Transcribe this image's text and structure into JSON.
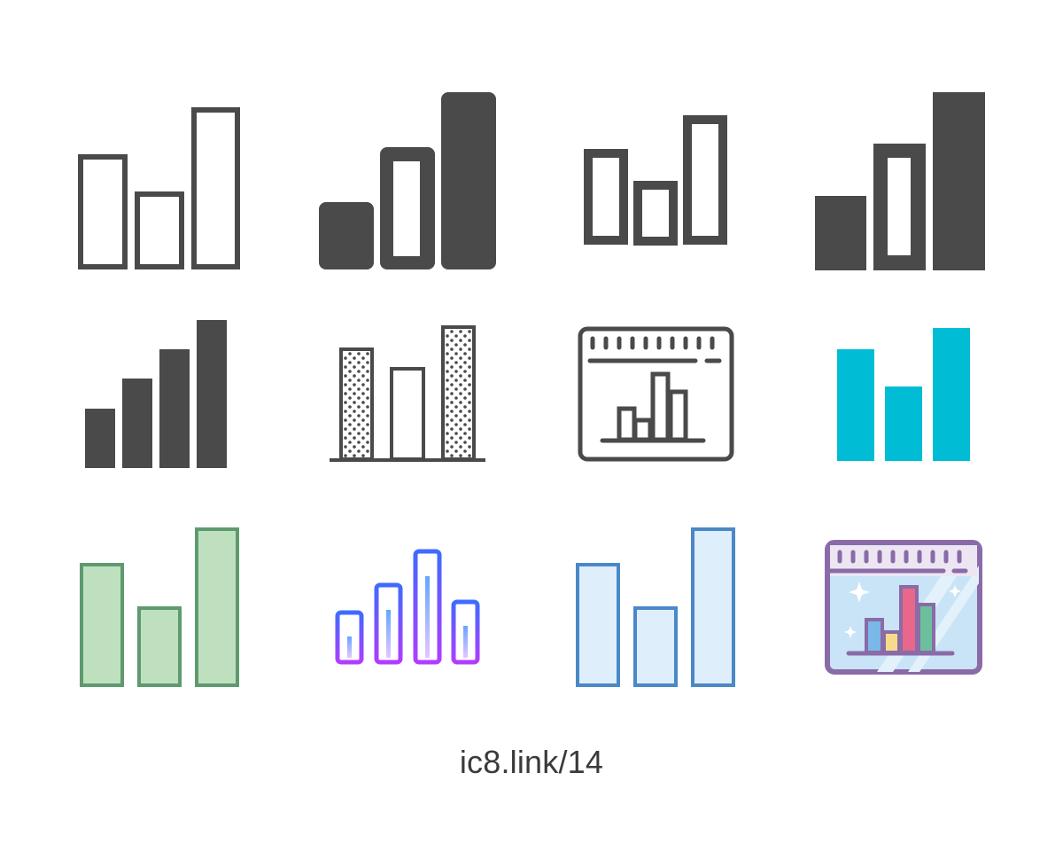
{
  "caption": "ic8.link/14",
  "colors": {
    "dark": "#4a4a4a",
    "cyan": "#00bcd4",
    "green_fill": "#bfe0bf",
    "green_stroke": "#5e9a6e",
    "blue_fill": "#dfeefb",
    "blue_stroke": "#4a88c7",
    "gradient_start": "#b13cff",
    "gradient_end": "#3f6bff",
    "purple_frame": "#8a6ba8",
    "window_pane": "#c9e3f7",
    "bar_blue": "#7ab8e8",
    "bar_yellow": "#f6dc8a",
    "bar_pink": "#e9678b",
    "bar_green": "#6cbf9c"
  },
  "icons": [
    {
      "name": "bar-chart-outline-icon"
    },
    {
      "name": "bar-chart-rounded-filled-icon"
    },
    {
      "name": "bar-chart-thin-outline-icon"
    },
    {
      "name": "bar-chart-mixed-filled-icon"
    },
    {
      "name": "signal-strength-bars-icon"
    },
    {
      "name": "bar-chart-dotted-texture-icon"
    },
    {
      "name": "bar-chart-in-browser-window-icon"
    },
    {
      "name": "bar-chart-cyan-icon"
    },
    {
      "name": "bar-chart-green-icon"
    },
    {
      "name": "bar-chart-gradient-icon"
    },
    {
      "name": "bar-chart-blue-icon"
    },
    {
      "name": "bar-chart-window-color-icon"
    }
  ]
}
